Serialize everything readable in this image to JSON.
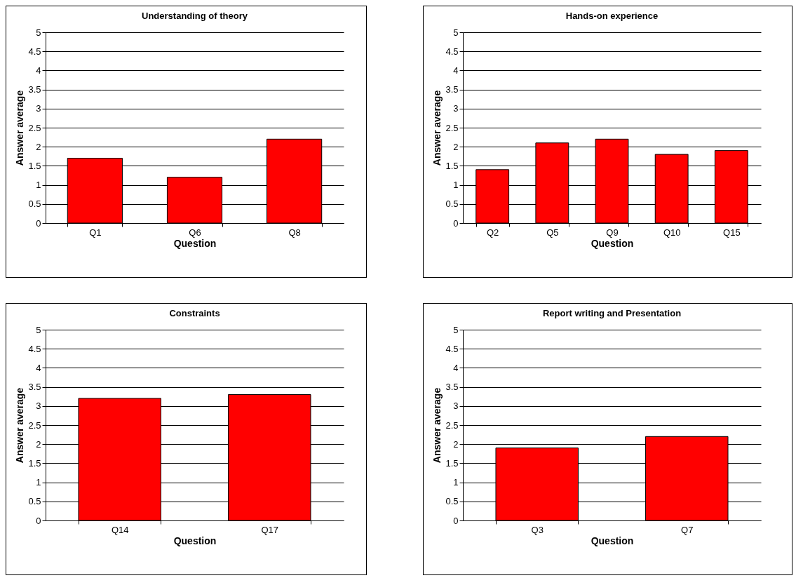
{
  "chart_data": [
    {
      "type": "bar",
      "title": "Understanding of theory",
      "xlabel": "Question",
      "ylabel": "Answer average",
      "categories": [
        "Q1",
        "Q6",
        "Q8"
      ],
      "values": [
        1.7,
        1.2,
        2.2
      ],
      "color": "#ff0000",
      "ylim": [
        0,
        5
      ],
      "yticks": [
        0,
        0.5,
        1,
        1.5,
        2,
        2.5,
        3,
        3.5,
        4,
        4.5,
        5
      ],
      "grid": "y"
    },
    {
      "type": "bar",
      "title": "Hands-on experience",
      "xlabel": "Question",
      "ylabel": "Answer average",
      "categories": [
        "Q2",
        "Q5",
        "Q9",
        "Q10",
        "Q15"
      ],
      "values": [
        1.4,
        2.1,
        2.2,
        1.8,
        1.9
      ],
      "color": "#ff0000",
      "ylim": [
        0,
        5
      ],
      "yticks": [
        0,
        0.5,
        1,
        1.5,
        2,
        2.5,
        3,
        3.5,
        4,
        4.5,
        5
      ],
      "grid": "y"
    },
    {
      "type": "bar",
      "title": "Constraints",
      "xlabel": "Question",
      "ylabel": "Answer average",
      "categories": [
        "Q14",
        "Q17"
      ],
      "values": [
        3.2,
        3.3
      ],
      "color": "#ff0000",
      "ylim": [
        0,
        5
      ],
      "yticks": [
        0,
        0.5,
        1,
        1.5,
        2,
        2.5,
        3,
        3.5,
        4,
        4.5,
        5
      ],
      "grid": "y"
    },
    {
      "type": "bar",
      "title": "Report writing and Presentation",
      "xlabel": "Question",
      "ylabel": "Answer average",
      "categories": [
        "Q3",
        "Q7"
      ],
      "values": [
        1.9,
        2.2
      ],
      "color": "#ff0000",
      "ylim": [
        0,
        5
      ],
      "yticks": [
        0,
        0.5,
        1,
        1.5,
        2,
        2.5,
        3,
        3.5,
        4,
        4.5,
        5
      ],
      "grid": "y"
    }
  ]
}
